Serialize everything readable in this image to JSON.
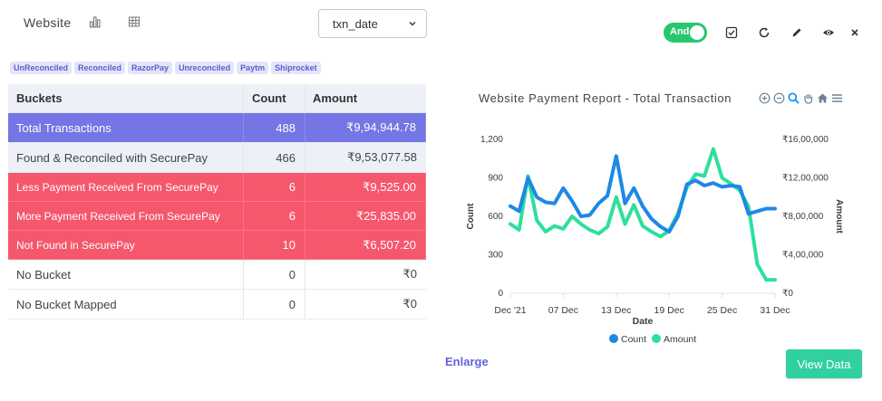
{
  "header": {
    "title": "Website",
    "select_value": "txn_date",
    "toggle_label": "And"
  },
  "tags": [
    "UnReconciled",
    "Reconciled",
    "RazorPay",
    "Unreconciled",
    "Paytm",
    "Shiprocket"
  ],
  "table": {
    "headers": [
      "Buckets",
      "Count",
      "Amount"
    ],
    "rows": [
      {
        "bucket": "Total Transactions",
        "count": "488",
        "amount": "₹9,94,944.78"
      },
      {
        "bucket": "Found & Reconciled with SecurePay",
        "count": "466",
        "amount": "₹9,53,077.58"
      },
      {
        "bucket": "Less Payment Received From SecurePay",
        "count": "6",
        "amount": "₹9,525.00"
      },
      {
        "bucket": "More Payment Received From SecurePay",
        "count": "6",
        "amount": "₹25,835.00"
      },
      {
        "bucket": "Not Found in SecurePay",
        "count": "10",
        "amount": "₹6,507.20"
      },
      {
        "bucket": "No Bucket",
        "count": "0",
        "amount": "₹0"
      },
      {
        "bucket": "No Bucket Mapped",
        "count": "0",
        "amount": "₹0"
      }
    ]
  },
  "chart": {
    "title": "Website Payment Report - Total Transaction",
    "enlarge_label": "Enlarge",
    "view_data_label": "View Data"
  },
  "colors": {
    "count": "#1e88e5",
    "amount": "#2de09b",
    "accent": "#7376e4",
    "alert": "#f5576c"
  },
  "chart_data": {
    "type": "line",
    "title": "Website Payment Report - Total Transaction",
    "xlabel": "Date",
    "ylabel": "Count",
    "y2label": "Amount",
    "x_ticks": [
      "Dec '21",
      "07 Dec",
      "13 Dec",
      "19 Dec",
      "25 Dec",
      "31 Dec"
    ],
    "y_ticks": [
      "0",
      "300",
      "600",
      "900",
      "1,200"
    ],
    "y2_ticks": [
      "₹0",
      "₹4,00,000",
      "₹8,00,000",
      "₹12,00,000",
      "₹16,00,000"
    ],
    "ylim": [
      0,
      1200
    ],
    "y2lim": [
      0,
      1600000
    ],
    "legend": [
      "Count",
      "Amount"
    ],
    "legend_position": "bottom",
    "x_days": [
      1,
      2,
      3,
      4,
      5,
      6,
      7,
      8,
      9,
      10,
      11,
      12,
      13,
      14,
      15,
      16,
      17,
      18,
      19,
      20,
      21,
      22,
      23,
      24,
      25,
      26,
      27,
      28,
      29,
      30,
      31
    ],
    "series": [
      {
        "name": "Count",
        "axis": "left",
        "values": [
          680,
          640,
          900,
          750,
          710,
          700,
          820,
          720,
          600,
          610,
          700,
          760,
          1070,
          700,
          820,
          680,
          580,
          520,
          480,
          600,
          850,
          880,
          840,
          860,
          830,
          840,
          830,
          620,
          640,
          660,
          660
        ]
      },
      {
        "name": "Amount",
        "axis": "right",
        "values": [
          720000,
          660000,
          1220000,
          760000,
          640000,
          700000,
          670000,
          800000,
          720000,
          660000,
          620000,
          690000,
          1000000,
          720000,
          920000,
          700000,
          640000,
          590000,
          650000,
          830000,
          1100000,
          1240000,
          1220000,
          1500000,
          1200000,
          1140000,
          1070000,
          900000,
          300000,
          140000,
          140000
        ]
      }
    ]
  }
}
